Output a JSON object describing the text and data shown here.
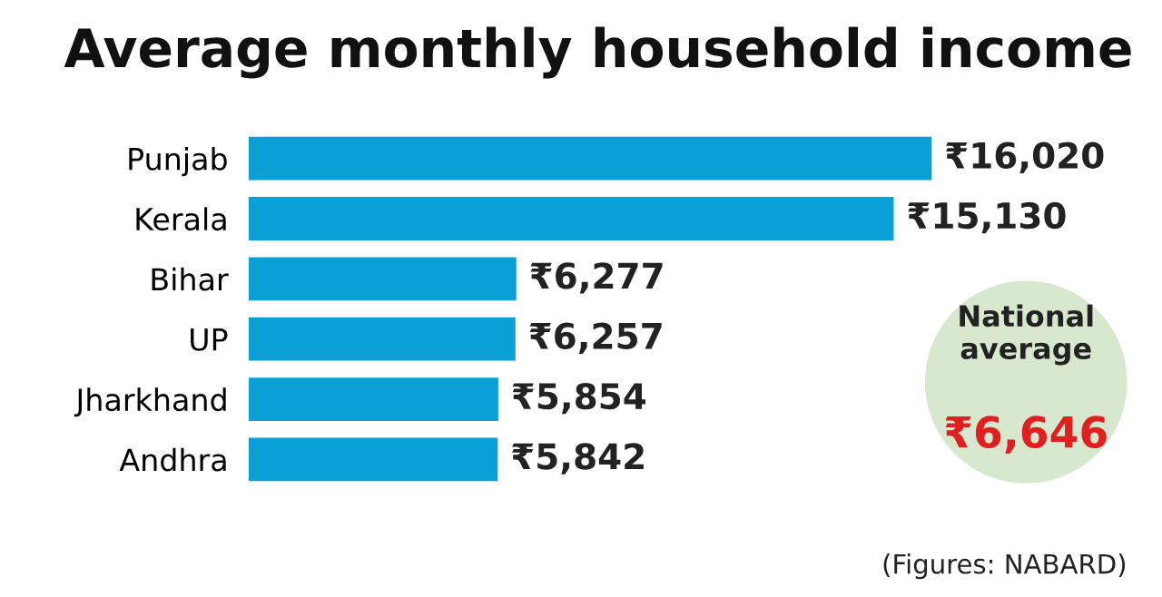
{
  "chart_data": {
    "type": "bar",
    "orientation": "horizontal",
    "title": "Average monthly household income",
    "categories": [
      "Punjab",
      "Kerala",
      "Bihar",
      "UP",
      "Jharkhand",
      "Andhra"
    ],
    "values": [
      16020,
      15130,
      6277,
      6257,
      5854,
      5842
    ],
    "value_labels": [
      "₹16,020",
      "₹15,130",
      "₹6,277",
      "₹6,257",
      "₹5,854",
      "₹5,842"
    ],
    "color": "#0aa0d6",
    "annotations": [
      "National average",
      "₹6,646",
      "(Figures: NABARD)"
    ]
  }
}
